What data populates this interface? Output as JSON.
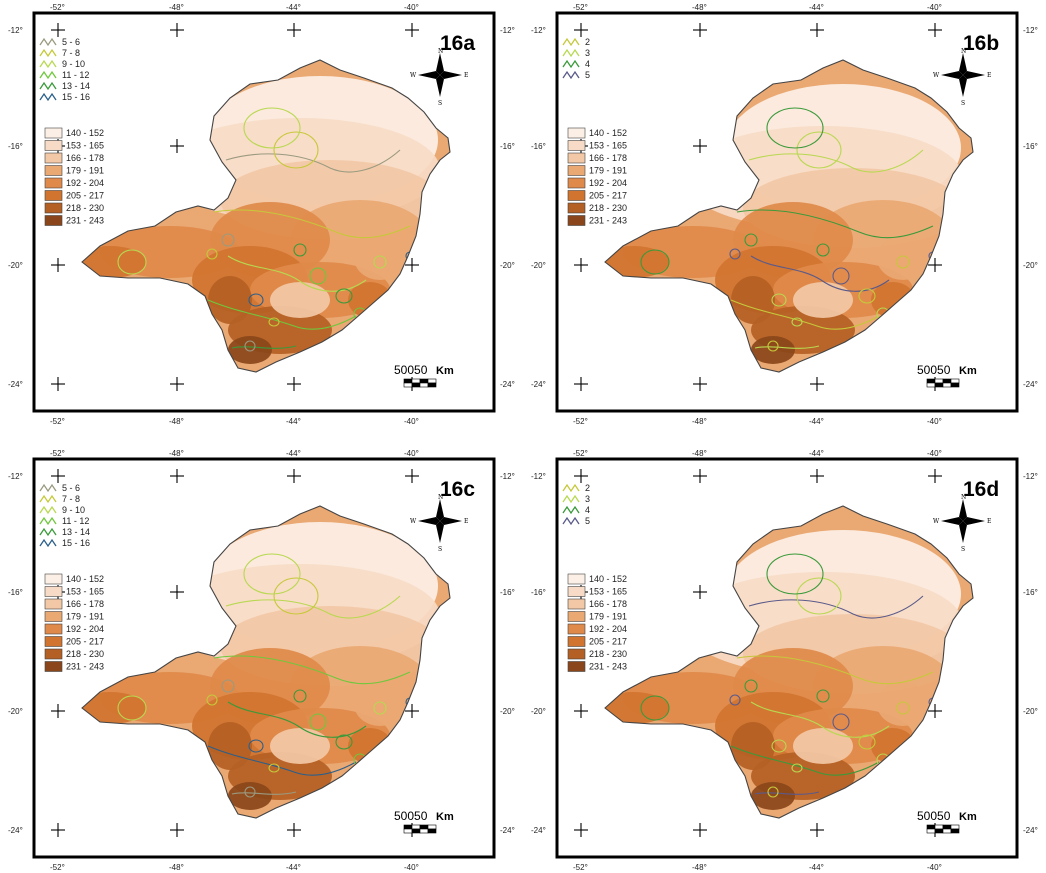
{
  "panels": [
    {
      "id": "16a",
      "label": "16a",
      "x_ticks": [
        "-52°",
        "-48°",
        "-44°",
        "-40°"
      ],
      "y_ticks": [
        "-12°",
        "-16°",
        "-20°",
        "-24°"
      ],
      "compass": {
        "n": "N",
        "s": "S",
        "e": "E",
        "w": "W"
      },
      "contour_legend": [
        {
          "label": "5 - 6",
          "color": "#9a9a80"
        },
        {
          "label": "7 - 8",
          "color": "#c6c83a"
        },
        {
          "label": "9 - 10",
          "color": "#b8d850"
        },
        {
          "label": "11 - 12",
          "color": "#6ec83c"
        },
        {
          "label": "13 - 14",
          "color": "#3a9a3a"
        },
        {
          "label": "15 - 16",
          "color": "#2b5f8a"
        }
      ],
      "fill_legend": [
        {
          "label": "140 - 152",
          "color": "#fcf0e6"
        },
        {
          "label": "153 - 165",
          "color": "#f7dbc6"
        },
        {
          "label": "166 - 178",
          "color": "#f2c8a6"
        },
        {
          "label": "179 - 191",
          "color": "#eaa873"
        },
        {
          "label": "192 - 204",
          "color": "#df8a4a"
        },
        {
          "label": "205 - 217",
          "color": "#d0742f"
        },
        {
          "label": "218 - 230",
          "color": "#b45f24"
        },
        {
          "label": "231 - 243",
          "color": "#8a461a"
        }
      ],
      "scale": {
        "text": "50050",
        "unit": "Km"
      }
    },
    {
      "id": "16b",
      "label": "16b",
      "x_ticks": [
        "-52°",
        "-48°",
        "-44°",
        "-40°"
      ],
      "y_ticks": [
        "-12°",
        "-16°",
        "-20°",
        "-24°"
      ],
      "compass": {
        "n": "N",
        "s": "S",
        "e": "E",
        "w": "W"
      },
      "contour_legend": [
        {
          "label": "2",
          "color": "#c6c83a"
        },
        {
          "label": "3",
          "color": "#b8d850"
        },
        {
          "label": "4",
          "color": "#3a9a3a"
        },
        {
          "label": "5",
          "color": "#5a5a8a"
        }
      ],
      "fill_legend": [
        {
          "label": "140 - 152",
          "color": "#fcf0e6"
        },
        {
          "label": "153 - 165",
          "color": "#f7dbc6"
        },
        {
          "label": "166 - 178",
          "color": "#f2c8a6"
        },
        {
          "label": "179 - 191",
          "color": "#eaa873"
        },
        {
          "label": "192 - 204",
          "color": "#df8a4a"
        },
        {
          "label": "205 - 217",
          "color": "#d0742f"
        },
        {
          "label": "218 - 230",
          "color": "#b45f24"
        },
        {
          "label": "231 - 243",
          "color": "#8a461a"
        }
      ],
      "scale": {
        "text": "50050",
        "unit": "Km"
      }
    },
    {
      "id": "16c",
      "label": "16c",
      "x_ticks": [
        "-52°",
        "-48°",
        "-44°",
        "-40°"
      ],
      "y_ticks": [
        "-12°",
        "-16°",
        "-20°",
        "-24°"
      ],
      "compass": {
        "n": "N",
        "s": "S",
        "e": "E",
        "w": "W"
      },
      "contour_legend": [
        {
          "label": "5 - 6",
          "color": "#9a9a80"
        },
        {
          "label": "7 - 8",
          "color": "#c6c83a"
        },
        {
          "label": "9 - 10",
          "color": "#b8d850"
        },
        {
          "label": "11 - 12",
          "color": "#6ec83c"
        },
        {
          "label": "13 - 14",
          "color": "#3a9a3a"
        },
        {
          "label": "15 - 16",
          "color": "#2b5f8a"
        }
      ],
      "fill_legend": [
        {
          "label": "140 - 152",
          "color": "#fcf0e6"
        },
        {
          "label": "153 - 165",
          "color": "#f7dbc6"
        },
        {
          "label": "166 - 178",
          "color": "#f2c8a6"
        },
        {
          "label": "179 - 191",
          "color": "#eaa873"
        },
        {
          "label": "192 - 204",
          "color": "#df8a4a"
        },
        {
          "label": "205 - 217",
          "color": "#d0742f"
        },
        {
          "label": "218 - 230",
          "color": "#b45f24"
        },
        {
          "label": "231 - 243",
          "color": "#8a461a"
        }
      ],
      "scale": {
        "text": "50050",
        "unit": "Km"
      }
    },
    {
      "id": "16d",
      "label": "16d",
      "x_ticks": [
        "-52°",
        "-48°",
        "-44°",
        "-40°"
      ],
      "y_ticks": [
        "-12°",
        "-16°",
        "-20°",
        "-24°"
      ],
      "compass": {
        "n": "N",
        "s": "S",
        "e": "E",
        "w": "W"
      },
      "contour_legend": [
        {
          "label": "2",
          "color": "#c6c83a"
        },
        {
          "label": "3",
          "color": "#b8d850"
        },
        {
          "label": "4",
          "color": "#3a9a3a"
        },
        {
          "label": "5",
          "color": "#5a5a8a"
        }
      ],
      "fill_legend": [
        {
          "label": "140 - 152",
          "color": "#fcf0e6"
        },
        {
          "label": "153 - 165",
          "color": "#f7dbc6"
        },
        {
          "label": "166 - 178",
          "color": "#f2c8a6"
        },
        {
          "label": "179 - 191",
          "color": "#eaa873"
        },
        {
          "label": "192 - 204",
          "color": "#df8a4a"
        },
        {
          "label": "205 - 217",
          "color": "#d0742f"
        },
        {
          "label": "218 - 230",
          "color": "#b45f24"
        },
        {
          "label": "231 - 243",
          "color": "#8a461a"
        }
      ],
      "scale": {
        "text": "50050",
        "unit": "Km"
      }
    }
  ]
}
